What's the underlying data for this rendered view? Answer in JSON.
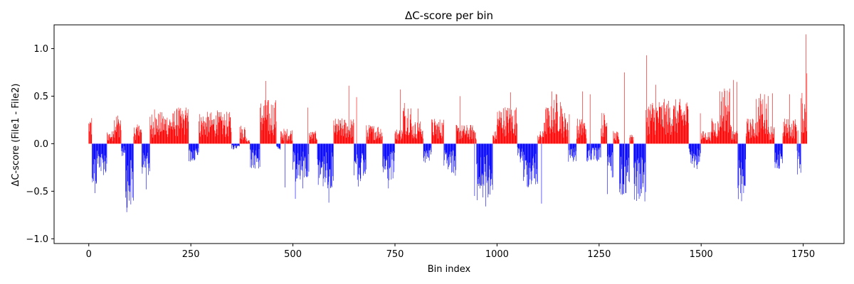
{
  "chart_data": {
    "type": "bar",
    "title": "ΔC-score per bin",
    "xlabel": "Bin index",
    "ylabel": "ΔC-score (File1 - File2)",
    "xlim": [
      -85,
      1850
    ],
    "ylim": [
      -1.05,
      1.25
    ],
    "xticks": [
      0,
      250,
      500,
      750,
      1000,
      1250,
      1500,
      1750
    ],
    "yticks": [
      -1.0,
      -0.5,
      0.0,
      0.5,
      1.0
    ],
    "xtick_labels": [
      "0",
      "250",
      "500",
      "750",
      "1000",
      "1250",
      "1500",
      "1750"
    ],
    "ytick_labels": [
      "−1.0",
      "−0.5",
      "0.0",
      "0.5",
      "1.0"
    ],
    "grid": false,
    "legend": "none",
    "bin_count": 1760,
    "colors": {
      "positive": "#ff0000",
      "negative": "#0000ff"
    },
    "segments": [
      [
        0,
        8,
        0.22
      ],
      [
        8,
        20,
        -0.35
      ],
      [
        20,
        30,
        -0.2
      ],
      [
        30,
        45,
        -0.25
      ],
      [
        45,
        60,
        0.1
      ],
      [
        60,
        80,
        0.25
      ],
      [
        80,
        90,
        -0.1
      ],
      [
        90,
        110,
        -0.5
      ],
      [
        110,
        130,
        0.15
      ],
      [
        130,
        150,
        -0.25
      ],
      [
        150,
        210,
        0.25
      ],
      [
        210,
        245,
        0.28
      ],
      [
        245,
        270,
        -0.15
      ],
      [
        270,
        350,
        0.25
      ],
      [
        350,
        370,
        -0.05
      ],
      [
        370,
        385,
        0.15
      ],
      [
        385,
        395,
        0.05
      ],
      [
        395,
        420,
        -0.2
      ],
      [
        420,
        460,
        0.35
      ],
      [
        460,
        470,
        -0.05
      ],
      [
        470,
        500,
        0.12
      ],
      [
        500,
        540,
        -0.3
      ],
      [
        540,
        560,
        0.1
      ],
      [
        560,
        600,
        -0.35
      ],
      [
        600,
        650,
        0.2
      ],
      [
        650,
        680,
        -0.3
      ],
      [
        680,
        720,
        0.15
      ],
      [
        720,
        750,
        -0.3
      ],
      [
        750,
        770,
        0.12
      ],
      [
        770,
        790,
        0.35
      ],
      [
        790,
        820,
        0.18
      ],
      [
        820,
        840,
        -0.15
      ],
      [
        840,
        870,
        0.2
      ],
      [
        870,
        900,
        -0.25
      ],
      [
        900,
        950,
        0.15
      ],
      [
        950,
        990,
        -0.45
      ],
      [
        990,
        1000,
        0.1
      ],
      [
        1000,
        1050,
        0.3
      ],
      [
        1050,
        1065,
        -0.15
      ],
      [
        1065,
        1100,
        -0.35
      ],
      [
        1100,
        1115,
        0.1
      ],
      [
        1115,
        1140,
        0.3
      ],
      [
        1140,
        1160,
        0.4
      ],
      [
        1160,
        1175,
        0.25
      ],
      [
        1175,
        1195,
        -0.15
      ],
      [
        1195,
        1220,
        0.2
      ],
      [
        1220,
        1255,
        -0.15
      ],
      [
        1255,
        1270,
        0.25
      ],
      [
        1270,
        1285,
        -0.3
      ],
      [
        1285,
        1300,
        0.1
      ],
      [
        1300,
        1325,
        -0.4
      ],
      [
        1325,
        1335,
        0.1
      ],
      [
        1335,
        1365,
        -0.45
      ],
      [
        1365,
        1470,
        0.35
      ],
      [
        1470,
        1500,
        -0.2
      ],
      [
        1500,
        1525,
        0.1
      ],
      [
        1525,
        1545,
        0.2
      ],
      [
        1545,
        1575,
        0.45
      ],
      [
        1575,
        1590,
        0.1
      ],
      [
        1590,
        1610,
        -0.45
      ],
      [
        1610,
        1640,
        0.2
      ],
      [
        1640,
        1665,
        0.4
      ],
      [
        1665,
        1680,
        0.15
      ],
      [
        1680,
        1700,
        -0.2
      ],
      [
        1700,
        1735,
        0.2
      ],
      [
        1735,
        1745,
        -0.25
      ],
      [
        1745,
        1760,
        0.4
      ]
    ],
    "spikes": [
      [
        3,
        0.23
      ],
      [
        15,
        -0.52
      ],
      [
        93,
        -0.72
      ],
      [
        123,
        0.19
      ],
      [
        141,
        -0.48
      ],
      [
        161,
        0.36
      ],
      [
        220,
        0.38
      ],
      [
        238,
        0.38
      ],
      [
        315,
        0.35
      ],
      [
        416,
        -0.26
      ],
      [
        434,
        0.66
      ],
      [
        443,
        0.1
      ],
      [
        481,
        -0.46
      ],
      [
        506,
        -0.58
      ],
      [
        524,
        -0.47
      ],
      [
        536,
        0.38
      ],
      [
        588,
        -0.62
      ],
      [
        637,
        0.61
      ],
      [
        656,
        0.49
      ],
      [
        660,
        -0.45
      ],
      [
        734,
        -0.47
      ],
      [
        763,
        0.57
      ],
      [
        807,
        0.37
      ],
      [
        909,
        0.5
      ],
      [
        945,
        -0.55
      ],
      [
        972,
        -0.66
      ],
      [
        1033,
        0.54
      ],
      [
        1109,
        -0.63
      ],
      [
        1134,
        0.55
      ],
      [
        1177,
        0.31
      ],
      [
        1209,
        0.55
      ],
      [
        1228,
        0.52
      ],
      [
        1270,
        -0.53
      ],
      [
        1312,
        0.75
      ],
      [
        1316,
        -0.52
      ],
      [
        1366,
        0.93
      ],
      [
        1389,
        0.62
      ],
      [
        1498,
        0.32
      ],
      [
        1557,
        0.58
      ],
      [
        1579,
        0.67
      ],
      [
        1588,
        0.65
      ],
      [
        1596,
        -0.52
      ],
      [
        1635,
        0.47
      ],
      [
        1675,
        0.53
      ],
      [
        1717,
        0.52
      ],
      [
        1737,
        0.14
      ],
      [
        1741,
        -0.26
      ],
      [
        1752,
        0.24
      ],
      [
        1757,
        1.15
      ],
      [
        1759,
        0.74
      ]
    ]
  }
}
